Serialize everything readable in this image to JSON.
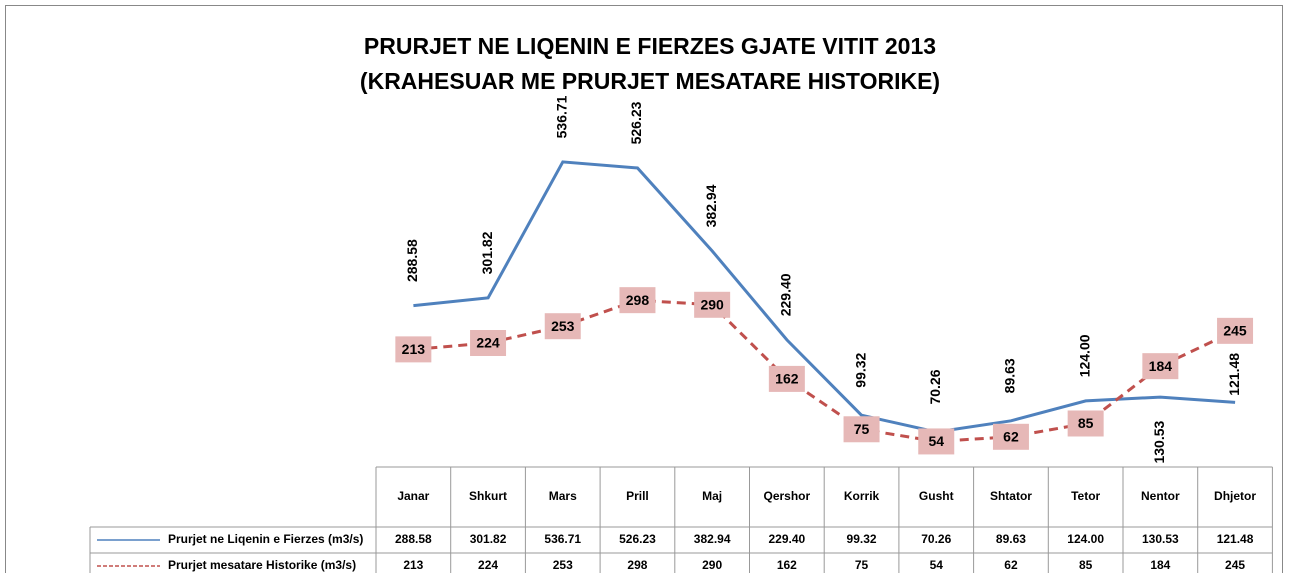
{
  "chart_data": {
    "type": "line",
    "title": "PRURJET NE LIQENIN E FIERZES GJATE VITIT 2013",
    "subtitle": "(KRAHESUAR ME PRURJET MESATARE HISTORIKE)",
    "categories": [
      "Janar",
      "Shkurt",
      "Mars",
      "Prill",
      "Maj",
      "Qershor",
      "Korrik",
      "Gusht",
      "Shtator",
      "Tetor",
      "Nentor",
      "Dhjetor"
    ],
    "ylim": [
      0,
      600
    ],
    "series": [
      {
        "name": "Prurjet ne Liqenin e Fierzes (m3/s)",
        "color": "#4f81bd",
        "dash": false,
        "values": [
          288.58,
          301.82,
          536.71,
          526.23,
          382.94,
          229.4,
          99.32,
          70.26,
          89.63,
          124,
          130.53,
          121.48
        ],
        "value_labels": [
          "288.58",
          "301.82",
          "536.71",
          "526.23",
          "382.94",
          "229.40",
          "99.32",
          "70.26",
          "89.63",
          "124.00",
          "130.53",
          "121.48"
        ]
      },
      {
        "name": "Prurjet mesatare  Historike (m3/s)",
        "color": "#c0504d",
        "dash": true,
        "values": [
          213,
          224,
          253,
          298,
          290,
          162,
          75,
          54,
          62,
          85,
          184,
          245
        ]
      }
    ]
  }
}
